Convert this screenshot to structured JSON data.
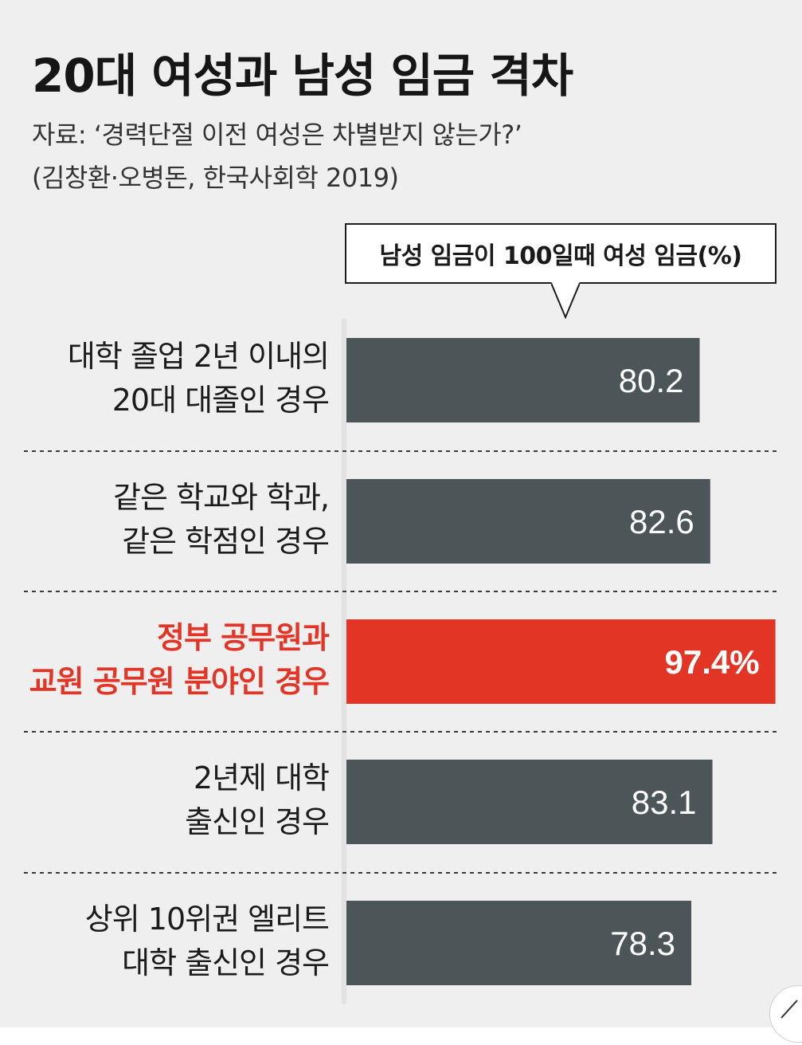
{
  "chart_data": {
    "type": "bar",
    "orientation": "horizontal",
    "title": "20대 여성과 남성 임금 격차",
    "source_lines": [
      "자료: ‘경력단절 이전 여성은 차별받지 않는가?’",
      "(김창환·오병돈, 한국사회학 2019)"
    ],
    "legend": "남성 임금이 100일때 여성 임금(%)",
    "categories": [
      [
        "대학 졸업 2년 이내의",
        "20대 대졸인 경우"
      ],
      [
        "같은 학교와 학과,",
        "같은 학점인 경우"
      ],
      [
        "정부 공무원과",
        "교원 공무원 분야인 경우"
      ],
      [
        "2년제 대학",
        "출신인 경우"
      ],
      [
        "상위 10위권 엘리트",
        "대학 출신인 경우"
      ]
    ],
    "values": [
      80.2,
      82.6,
      97.4,
      83.1,
      78.3
    ],
    "value_labels": [
      "80.2",
      "82.6",
      "97.4%",
      "83.1",
      "78.3"
    ],
    "highlight_index": 2,
    "colors": {
      "bar": "#4c5558",
      "highlight": "#e23526",
      "text": "#1b1b1b",
      "background": "#efefef"
    },
    "grid": false,
    "separators": "dashed"
  },
  "icons": {
    "corner": "share-arrow-icon"
  }
}
